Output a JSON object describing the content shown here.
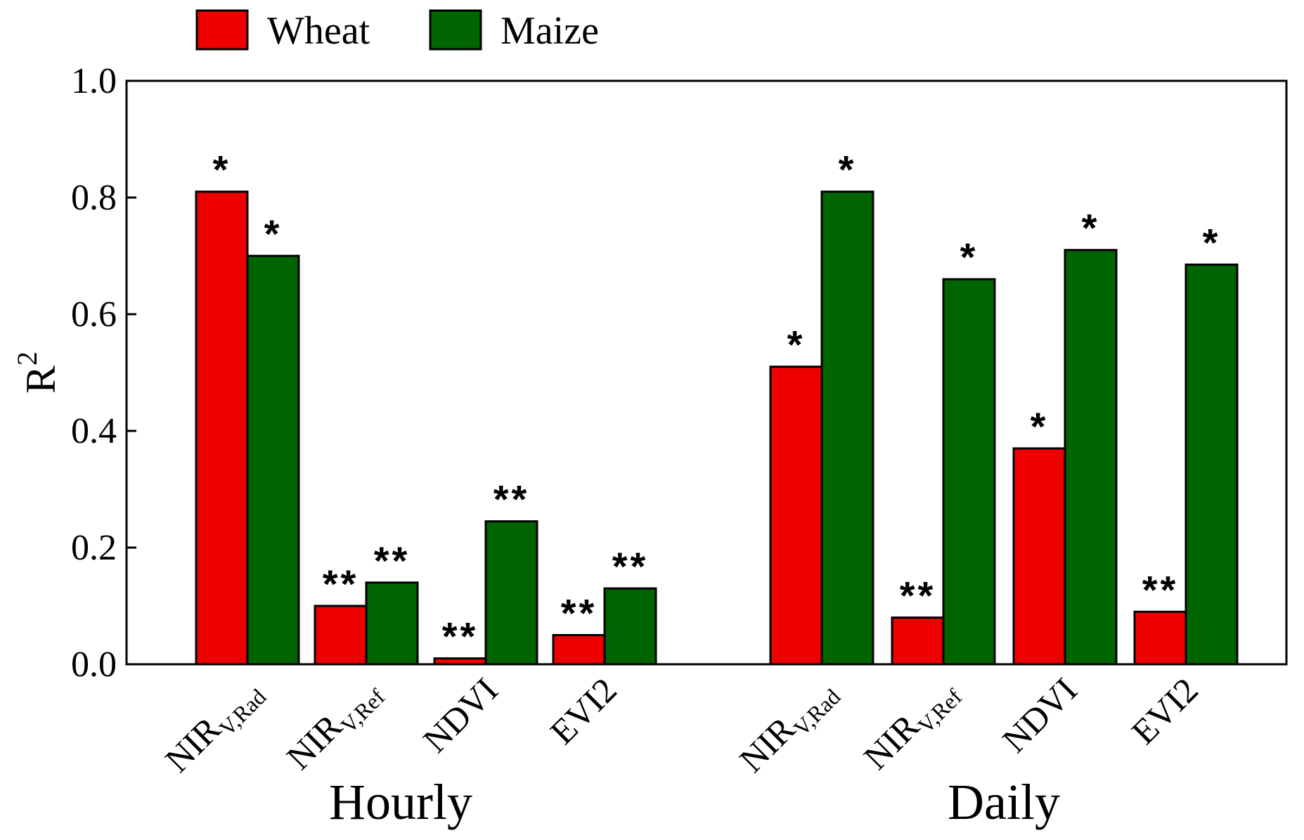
{
  "chart_data": {
    "type": "bar",
    "ylabel": "R",
    "ylabel_superscript": "2",
    "ylim": [
      0,
      1.0
    ],
    "yticks": [
      "0.0",
      "0.2",
      "0.4",
      "0.6",
      "0.8",
      "1.0"
    ],
    "ytick_values": [
      0,
      0.2,
      0.4,
      0.6,
      0.8,
      1.0
    ],
    "legend": {
      "position": "top-left",
      "entries": [
        {
          "name": "Wheat",
          "color": "#ee0000"
        },
        {
          "name": "Maize",
          "color": "#006400"
        }
      ]
    },
    "groups": [
      {
        "label": "Hourly",
        "categories": [
          {
            "base": "NIR",
            "sub": "V,Rad"
          },
          {
            "base": "NIR",
            "sub": "V,Ref"
          },
          {
            "base": "NDVI",
            "sub": ""
          },
          {
            "base": "EVI2",
            "sub": ""
          }
        ],
        "series": [
          {
            "name": "Wheat",
            "values": [
              0.81,
              0.1,
              0.01,
              0.05
            ],
            "significance": [
              "*",
              "**",
              "**",
              "**"
            ]
          },
          {
            "name": "Maize",
            "values": [
              0.7,
              0.14,
              0.245,
              0.13
            ],
            "significance": [
              "*",
              "**",
              "**",
              "**"
            ]
          }
        ]
      },
      {
        "label": "Daily",
        "categories": [
          {
            "base": "NIR",
            "sub": "V,Rad"
          },
          {
            "base": "NIR",
            "sub": "V,Ref"
          },
          {
            "base": "NDVI",
            "sub": ""
          },
          {
            "base": "EVI2",
            "sub": ""
          }
        ],
        "series": [
          {
            "name": "Wheat",
            "values": [
              0.51,
              0.08,
              0.37,
              0.09
            ],
            "significance": [
              "*",
              "**",
              "*",
              "**"
            ]
          },
          {
            "name": "Maize",
            "values": [
              0.81,
              0.66,
              0.71,
              0.685
            ],
            "significance": [
              "*",
              "*",
              "*",
              "*"
            ]
          }
        ]
      }
    ]
  }
}
